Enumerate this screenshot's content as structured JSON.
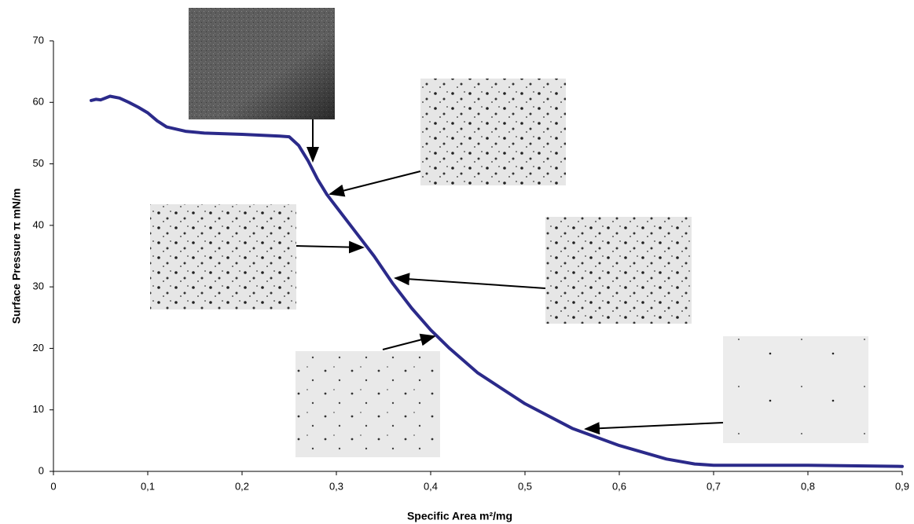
{
  "chart_data": {
    "type": "line",
    "x_label": "Specific Area m²/mg",
    "y_label": "Surface Pressure π mN/m",
    "x": [
      0.04,
      0.045,
      0.05,
      0.06,
      0.07,
      0.08,
      0.09,
      0.1,
      0.11,
      0.12,
      0.14,
      0.16,
      0.2,
      0.24,
      0.25,
      0.26,
      0.27,
      0.28,
      0.29,
      0.3,
      0.32,
      0.34,
      0.36,
      0.38,
      0.4,
      0.42,
      0.45,
      0.5,
      0.55,
      0.6,
      0.65,
      0.68,
      0.7,
      0.8,
      0.9
    ],
    "values": [
      60.3,
      60.5,
      60.4,
      61,
      60.7,
      60,
      59.2,
      58.3,
      57,
      56,
      55.3,
      55,
      54.8,
      54.5,
      54.4,
      53,
      50.5,
      47.5,
      45,
      43,
      39,
      35,
      30.5,
      26.5,
      23,
      20,
      16,
      11,
      7,
      4.2,
      2,
      1.2,
      1,
      1,
      0.8
    ],
    "color": "#2b2a8a",
    "xlim": [
      0,
      0.9
    ],
    "ylim": [
      0,
      70
    ],
    "xticks": [
      0,
      {
        "value": 0.1,
        "label": "0,1"
      },
      {
        "value": 0.2,
        "label": "0,2"
      },
      {
        "value": 0.3,
        "label": "0,3"
      },
      {
        "value": 0.4,
        "label": "0,4"
      },
      {
        "value": 0.5,
        "label": "0,5"
      },
      {
        "value": 0.6,
        "label": "0,6"
      },
      {
        "value": 0.7,
        "label": "0,7"
      },
      {
        "value": 0.8,
        "label": "0,8"
      },
      {
        "value": 0.9,
        "label": "0,9"
      }
    ],
    "yticks": [
      0,
      10,
      20,
      30,
      40,
      50,
      60,
      70
    ],
    "grid": false
  }
}
